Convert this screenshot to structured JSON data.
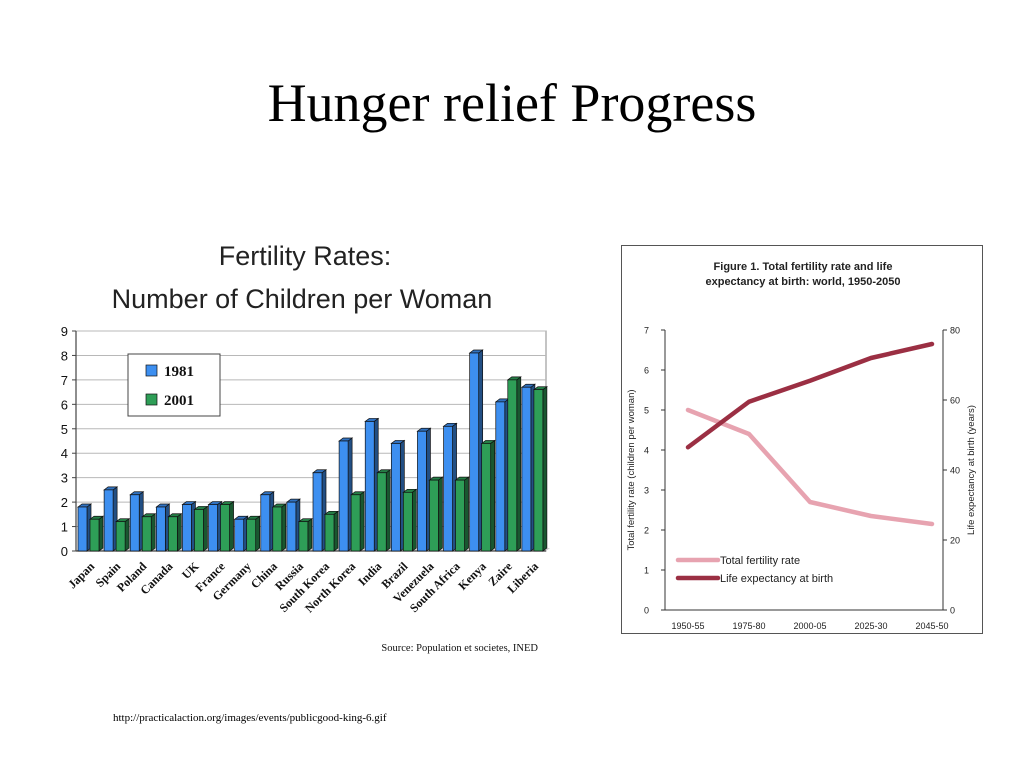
{
  "slide": {
    "title": "Hunger relief Progress",
    "footer_url": "http://practicalaction.org/images/events/publicgood-king-6.gif"
  },
  "colors": {
    "bar_1981": "#3d8ff0",
    "bar_2001": "#2e9e57",
    "fertility_line": "#e7a3b0",
    "life_line": "#9b2f43"
  },
  "chart_data": [
    {
      "type": "bar",
      "title": "Fertility Rates:",
      "subtitle": "Number of Children per Woman",
      "source": "Source: Population et societes, INED",
      "categories": [
        "Japan",
        "Spain",
        "Poland",
        "Canada",
        "UK",
        "France",
        "Germany",
        "China",
        "Russia",
        "South Korea",
        "North Korea",
        "India",
        "Brazil",
        "Venezuela",
        "South Africa",
        "Kenya",
        "Zaire",
        "Liberia"
      ],
      "series": [
        {
          "name": "1981",
          "values": [
            1.8,
            2.5,
            2.3,
            1.8,
            1.9,
            1.9,
            1.3,
            2.3,
            2.0,
            3.2,
            4.5,
            5.3,
            4.4,
            4.9,
            5.1,
            8.1,
            6.1,
            6.7
          ]
        },
        {
          "name": "2001",
          "values": [
            1.3,
            1.2,
            1.4,
            1.4,
            1.7,
            1.9,
            1.3,
            1.8,
            1.2,
            1.5,
            2.3,
            3.2,
            2.4,
            2.9,
            2.9,
            4.4,
            7.0,
            6.6
          ]
        }
      ],
      "ylim": [
        0,
        9
      ],
      "yticks": [
        0,
        1,
        2,
        3,
        4,
        5,
        6,
        7,
        8,
        9
      ],
      "grid": true,
      "legend": "top-left"
    },
    {
      "type": "line",
      "title": "Figure 1.  Total fertility rate and life",
      "subtitle": "expectancy at birth: world, 1950-2050",
      "categories": [
        "1950-55",
        "1975-80",
        "2000-05",
        "2025-30",
        "2045-50"
      ],
      "ylabel": "Total fertility rate (children per woman)",
      "y2label": "Life expectancy at birth (years)",
      "ylim": [
        0,
        7
      ],
      "y2lim": [
        0,
        80
      ],
      "yticks": [
        0,
        1,
        2,
        3,
        4,
        5,
        6,
        7
      ],
      "y2ticks": [
        0,
        20,
        40,
        60,
        80
      ],
      "legend": "bottom-left",
      "series": [
        {
          "name": "Total fertility rate",
          "axis": "left",
          "values": [
            5.0,
            4.4,
            2.7,
            2.35,
            2.15
          ]
        },
        {
          "name": "Life expectancy at birth",
          "axis": "right",
          "values": [
            46.5,
            59.5,
            65.5,
            72,
            76
          ]
        }
      ]
    }
  ]
}
